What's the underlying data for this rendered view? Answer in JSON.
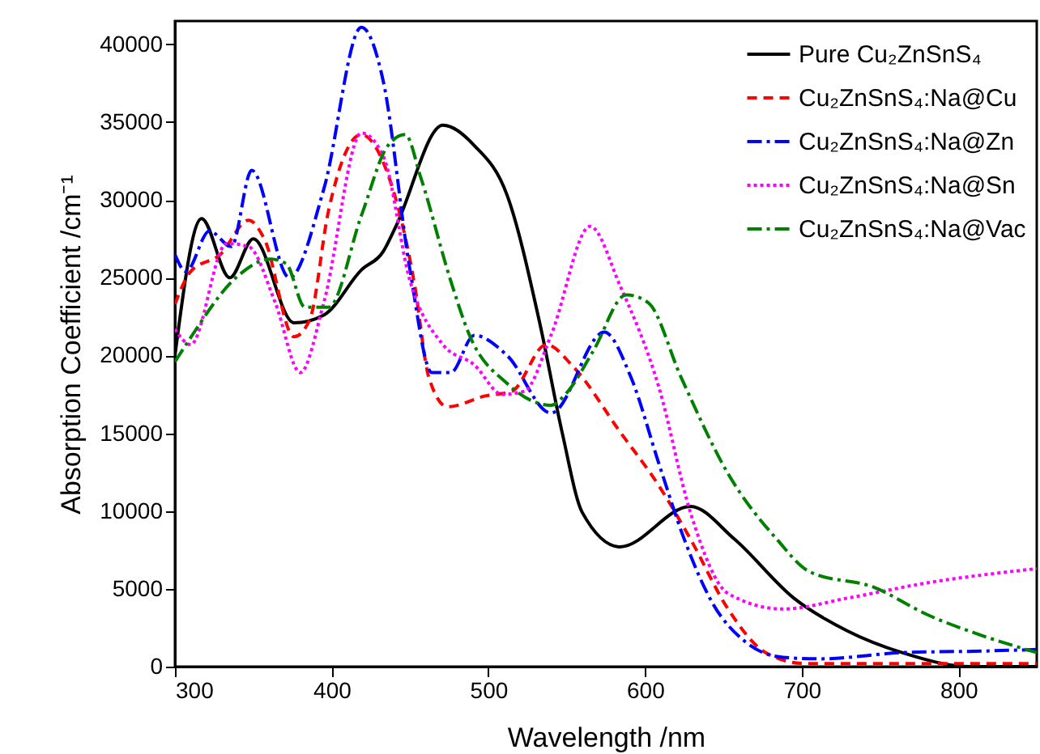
{
  "chart_data": {
    "type": "line",
    "xlabel": "Wavelength /nm",
    "ylabel": "Absorption Coefficient /cm⁻¹",
    "xlim": [
      300,
      850
    ],
    "ylim": [
      0,
      41500
    ],
    "xticks": [
      300,
      400,
      500,
      600,
      700,
      800
    ],
    "yticks": [
      0,
      5000,
      10000,
      15000,
      20000,
      25000,
      30000,
      35000,
      40000
    ],
    "grid": false,
    "legend": "top right",
    "marker": "none",
    "series": [
      {
        "name": "Pure Cu₂ZnSnS₄",
        "color": "#000000",
        "line_style": "solid",
        "x": [
          300,
          317,
          335,
          350,
          376,
          395,
          419,
          433,
          441,
          471,
          491,
          512,
          533,
          547,
          560,
          584,
          629,
          657,
          695,
          729,
          764,
          808,
          850
        ],
        "values": [
          20000,
          28800,
          25000,
          27500,
          22100,
          22600,
          25500,
          26700,
          28300,
          34800,
          33500,
          30300,
          22000,
          15100,
          9900,
          7700,
          10300,
          8200,
          4400,
          2300,
          900,
          0,
          0
        ]
      },
      {
        "name": "Cu₂ZnSnS₄:Na@Cu",
        "color": "#ff0000",
        "line_style": "dashed",
        "x": [
          300,
          310,
          329,
          347,
          357,
          376,
          386,
          398,
          419,
          433,
          453,
          462,
          474,
          498,
          515,
          537,
          554,
          584,
          609,
          629,
          653,
          677,
          702,
          850
        ],
        "values": [
          23300,
          25400,
          26500,
          28700,
          27500,
          21200,
          22300,
          29300,
          34200,
          32400,
          24500,
          18600,
          16700,
          17400,
          17700,
          20700,
          19300,
          15100,
          11600,
          8200,
          3700,
          900,
          200,
          200
        ]
      },
      {
        "name": "Cu₂ZnSnS₄:Na@Zn",
        "color": "#0000ff",
        "line_style": "dashdot",
        "x": [
          300,
          307,
          322,
          336,
          349,
          373,
          395,
          419,
          433,
          450,
          464,
          476,
          491,
          512,
          540,
          574,
          591,
          609,
          625,
          643,
          664,
          688,
          712,
          764,
          815,
          850
        ],
        "values": [
          26500,
          25400,
          28000,
          27000,
          31900,
          25000,
          30700,
          41100,
          37600,
          25500,
          18900,
          18900,
          21300,
          20000,
          16300,
          21500,
          18600,
          13000,
          8200,
          4100,
          1600,
          600,
          500,
          900,
          1000,
          1100
        ]
      },
      {
        "name": "Cu₂ZnSnS₄:Na@Sn",
        "color": "#ff00ff",
        "line_style": "dotted",
        "x": [
          300,
          310,
          333,
          347,
          364,
          380,
          395,
          419,
          433,
          450,
          471,
          491,
          509,
          523,
          540,
          565,
          584,
          609,
          629,
          653,
          688,
          729,
          781,
          850
        ],
        "values": [
          21700,
          20700,
          27200,
          27000,
          23400,
          18900,
          23400,
          34300,
          32800,
          24800,
          20700,
          19400,
          17500,
          17700,
          21300,
          28300,
          24500,
          17900,
          9900,
          4700,
          3700,
          4400,
          5400,
          6300
        ]
      },
      {
        "name": "Cu₂ZnSnS₄:Na@Vac",
        "color": "#008000",
        "line_style": "dashdot",
        "x": [
          300,
          309,
          340,
          361,
          371,
          383,
          398,
          419,
          436,
          447,
          457,
          476,
          488,
          512,
          540,
          550,
          567,
          588,
          602,
          623,
          653,
          684,
          705,
          746,
          781,
          815,
          850
        ],
        "values": [
          19600,
          21000,
          25100,
          26200,
          25900,
          23100,
          23100,
          29000,
          33500,
          34200,
          31400,
          24800,
          21300,
          18200,
          16800,
          17600,
          20300,
          23900,
          23400,
          18600,
          12400,
          8200,
          6100,
          5100,
          3300,
          2000,
          900
        ]
      }
    ]
  }
}
